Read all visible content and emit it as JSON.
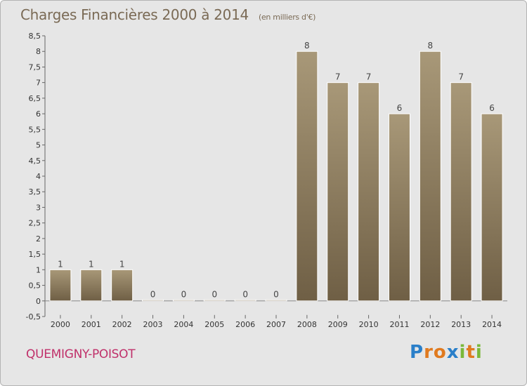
{
  "header": {
    "title": "Charges Financières 2000 à 2014",
    "subtitle": "(en milliers d'€)"
  },
  "footer": {
    "commune": "QUEMIGNY-POISOT",
    "logo": "Proxiti"
  },
  "colors": {
    "bar_top": "#a89878",
    "bar_bottom": "#6f5f45",
    "commune_text": "#c0306a",
    "background": "#e6e6e6"
  },
  "chart_data": {
    "type": "bar",
    "title": "Charges Financières 2000 à 2014",
    "subtitle": "(en milliers d'€)",
    "categories": [
      "2000",
      "2001",
      "2002",
      "2003",
      "2004",
      "2005",
      "2006",
      "2007",
      "2008",
      "2009",
      "2010",
      "2011",
      "2012",
      "2013",
      "2014"
    ],
    "values": [
      1,
      1,
      1,
      0,
      0,
      0,
      0,
      0,
      8,
      7,
      7,
      6,
      8,
      7,
      6
    ],
    "ylim": [
      -0.5,
      8.5
    ],
    "yticks": [
      "-0,5",
      "0",
      "0,5",
      "1",
      "1,5",
      "2",
      "2,5",
      "3",
      "3,5",
      "4",
      "4,5",
      "5",
      "5,5",
      "6",
      "6,5",
      "7",
      "7,5",
      "8",
      "8,5"
    ],
    "ytick_values": [
      -0.5,
      0,
      0.5,
      1,
      1.5,
      2,
      2.5,
      3,
      3.5,
      4,
      4.5,
      5,
      5.5,
      6,
      6.5,
      7,
      7.5,
      8,
      8.5
    ],
    "grid": false,
    "xlabel": "",
    "ylabel": ""
  }
}
